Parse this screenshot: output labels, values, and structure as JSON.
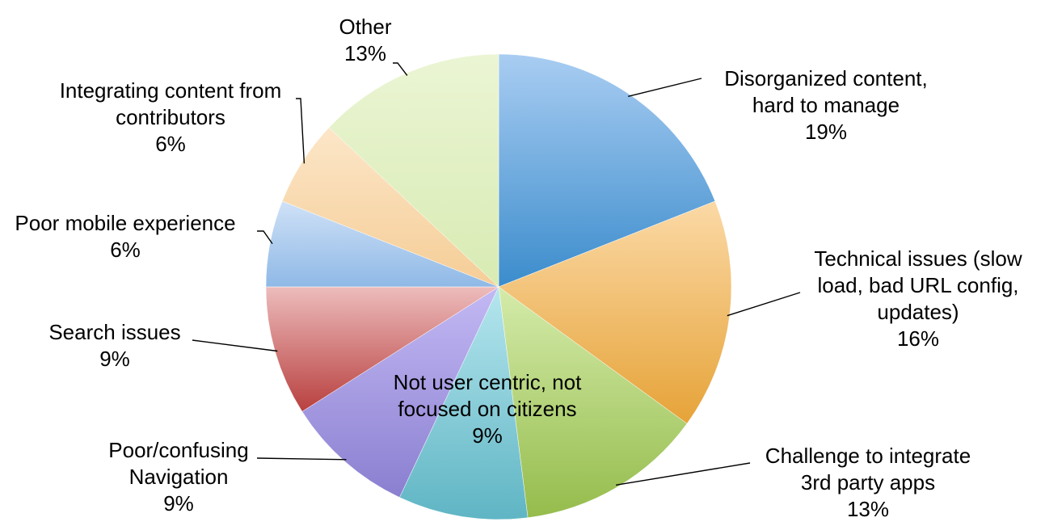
{
  "chart_data": {
    "type": "pie",
    "start": "12 o'clock, clockwise",
    "slices": [
      {
        "label_lines": [
          "Disorganized content,",
          "hard to manage"
        ],
        "value": 19,
        "value_text": "19%",
        "color_light": "#a9cdf2",
        "color_dark": "#3b8ccc"
      },
      {
        "label_lines": [
          "Technical issues (slow",
          "load, bad URL config,",
          "updates)"
        ],
        "value": 16,
        "value_text": "16%",
        "color_light": "#fbd9a6",
        "color_dark": "#e6a338"
      },
      {
        "label_lines": [
          "Challenge to integrate",
          "3rd party apps"
        ],
        "value": 13,
        "value_text": "13%",
        "color_light": "#d4ebaa",
        "color_dark": "#95bc4c"
      },
      {
        "label_lines": [
          "Not user centric, not",
          "focused on citizens"
        ],
        "value": 9,
        "value_text": "9%",
        "color_light": "#b6e6ee",
        "color_dark": "#5fb5c4"
      },
      {
        "label_lines": [
          "Poor/confusing",
          "Navigation"
        ],
        "value": 9,
        "value_text": "9%",
        "color_light": "#c3b9f4",
        "color_dark": "#8a7fd0"
      },
      {
        "label_lines": [
          "Search issues"
        ],
        "value": 9,
        "value_text": "9%",
        "color_light": "#edbcbc",
        "color_dark": "#b8403f"
      },
      {
        "label_lines": [
          "Poor mobile experience"
        ],
        "value": 6,
        "value_text": "6%",
        "color_light": "#cfe1f7",
        "color_dark": "#8fb9e6"
      },
      {
        "label_lines": [
          "Integrating content from",
          "contributors"
        ],
        "value": 6,
        "value_text": "6%",
        "color_light": "#fce6c8",
        "color_dark": "#f5cd96"
      },
      {
        "label_lines": [
          "Other"
        ],
        "value": 13,
        "value_text": "13%",
        "color_light": "#ebf5d4",
        "color_dark": "#d8ebb3"
      }
    ]
  }
}
